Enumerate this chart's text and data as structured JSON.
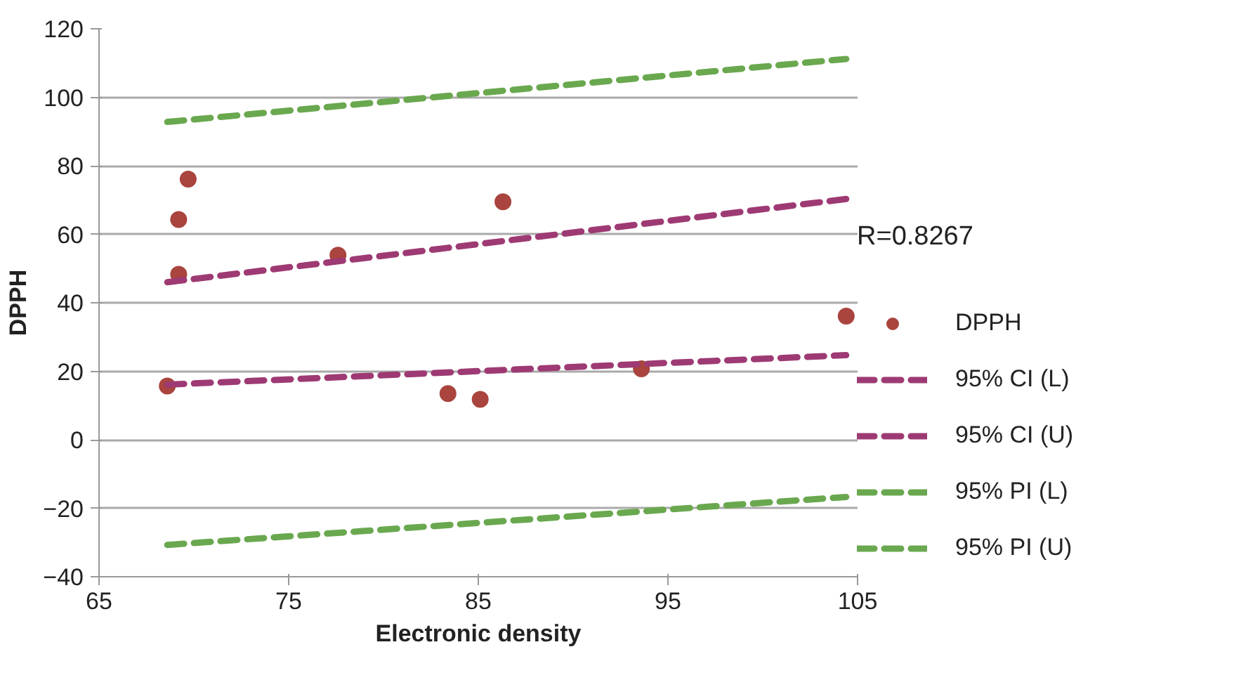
{
  "chart_data": {
    "type": "scatter",
    "xlabel": "Electronic density",
    "ylabel": "DPPH",
    "annotations": [
      "R=0.8267"
    ],
    "series": [
      {
        "name": "DPPH",
        "type": "scatter",
        "color": "#a9443e",
        "marker": "circle",
        "x": [
          68.6,
          69.2,
          69.2,
          69.7,
          77.6,
          83.4,
          85.1,
          86.3,
          93.6,
          104.4
        ],
        "values": [
          15.7,
          64.3,
          48.3,
          76.1,
          53.9,
          13.5,
          11.8,
          69.5,
          20.7,
          36.1
        ]
      },
      {
        "name": "95% CI (L)",
        "type": "line",
        "color": "#9e3a73",
        "line_style": "dashed",
        "x": [
          68.6,
          104.4
        ],
        "values": [
          16.1,
          24.7
        ]
      },
      {
        "name": "95% CI (U)",
        "type": "line",
        "color": "#9e3a73",
        "line_style": "dashed",
        "x": [
          68.6,
          104.4
        ],
        "values": [
          46.0,
          70.3
        ]
      },
      {
        "name": "95% PI (L)",
        "type": "line",
        "color": "#6aa84f",
        "line_style": "dashed",
        "x": [
          68.6,
          104.4
        ],
        "values": [
          -30.7,
          -16.7
        ]
      },
      {
        "name": "95% PI (U)",
        "type": "line",
        "color": "#6aa84f",
        "line_style": "dashed",
        "x": [
          68.6,
          104.4
        ],
        "values": [
          92.8,
          111.2
        ]
      }
    ],
    "xlim": [
      65,
      105
    ],
    "xticks": [
      65,
      75,
      85,
      95,
      105
    ],
    "ylim": [
      -40,
      120
    ],
    "yticks": [
      -40,
      -20,
      0,
      20,
      40,
      60,
      80,
      100,
      120
    ],
    "grid": "y",
    "legend": "right"
  }
}
